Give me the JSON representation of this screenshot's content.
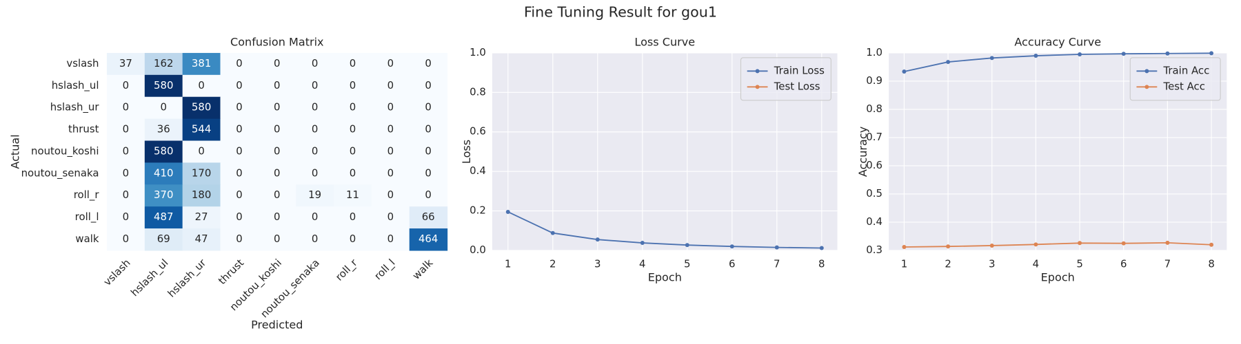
{
  "title": "Fine Tuning Result for gou1",
  "chart_data": [
    {
      "type": "heatmap",
      "title": "Confusion Matrix",
      "x_label": "Predicted",
      "y_label": "Actual",
      "colormap": "Blues",
      "x_categories": [
        "vslash",
        "hslash_ul",
        "hslash_ur",
        "thrust",
        "noutou_koshi",
        "noutou_senaka",
        "roll_r",
        "roll_l",
        "walk"
      ],
      "y_categories": [
        "vslash",
        "hslash_ul",
        "hslash_ur",
        "thrust",
        "noutou_koshi",
        "noutou_senaka",
        "roll_r",
        "roll_l",
        "walk"
      ],
      "values": [
        [
          37,
          162,
          381,
          0,
          0,
          0,
          0,
          0,
          0
        ],
        [
          0,
          580,
          0,
          0,
          0,
          0,
          0,
          0,
          0
        ],
        [
          0,
          0,
          580,
          0,
          0,
          0,
          0,
          0,
          0
        ],
        [
          0,
          36,
          544,
          0,
          0,
          0,
          0,
          0,
          0
        ],
        [
          0,
          580,
          0,
          0,
          0,
          0,
          0,
          0,
          0
        ],
        [
          0,
          410,
          170,
          0,
          0,
          0,
          0,
          0,
          0
        ],
        [
          0,
          370,
          180,
          0,
          0,
          19,
          11,
          0,
          0
        ],
        [
          0,
          487,
          27,
          0,
          0,
          0,
          0,
          0,
          66
        ],
        [
          0,
          69,
          47,
          0,
          0,
          0,
          0,
          0,
          464
        ]
      ]
    },
    {
      "type": "line",
      "title": "Loss Curve",
      "x_label": "Epoch",
      "y_label": "Loss",
      "grid": true,
      "legend": "upper right",
      "x": [
        1,
        2,
        3,
        4,
        5,
        6,
        7,
        8
      ],
      "xlim": [
        0.65,
        8.35
      ],
      "xticks": [
        1,
        2,
        3,
        4,
        5,
        6,
        7,
        8
      ],
      "ylim": [
        0,
        1
      ],
      "yticks": [
        {
          "value": 0,
          "label": "0.0"
        },
        0.2,
        0.4,
        0.6,
        0.8,
        {
          "value": 1,
          "label": "1.0"
        }
      ],
      "series": [
        {
          "name": "Train Loss",
          "color": "#4c72b0",
          "values": [
            0.195,
            0.088,
            0.055,
            0.038,
            0.027,
            0.02,
            0.015,
            0.012
          ]
        },
        {
          "name": "Test Loss",
          "color": "#dd8452",
          "values": [
            null,
            null,
            null,
            null,
            null,
            null,
            null,
            null
          ]
        }
      ]
    },
    {
      "type": "line",
      "title": "Accuracy Curve",
      "x_label": "Epoch",
      "y_label": "Accuracy",
      "grid": true,
      "legend": "upper right",
      "x": [
        1,
        2,
        3,
        4,
        5,
        6,
        7,
        8
      ],
      "xlim": [
        0.65,
        8.35
      ],
      "xticks": [
        1,
        2,
        3,
        4,
        5,
        6,
        7,
        8
      ],
      "ylim": [
        0.3,
        1
      ],
      "yticks": [
        0.3,
        0.4,
        0.5,
        0.6,
        0.7,
        0.8,
        0.9,
        {
          "value": 1,
          "label": "1.0"
        }
      ],
      "series": [
        {
          "name": "Train Acc",
          "color": "#4c72b0",
          "values": [
            0.934,
            0.968,
            0.982,
            0.99,
            0.995,
            0.997,
            0.998,
            0.999
          ]
        },
        {
          "name": "Test Acc",
          "color": "#dd8452",
          "values": [
            0.312,
            0.314,
            0.317,
            0.321,
            0.326,
            0.325,
            0.327,
            0.32
          ]
        }
      ]
    }
  ]
}
